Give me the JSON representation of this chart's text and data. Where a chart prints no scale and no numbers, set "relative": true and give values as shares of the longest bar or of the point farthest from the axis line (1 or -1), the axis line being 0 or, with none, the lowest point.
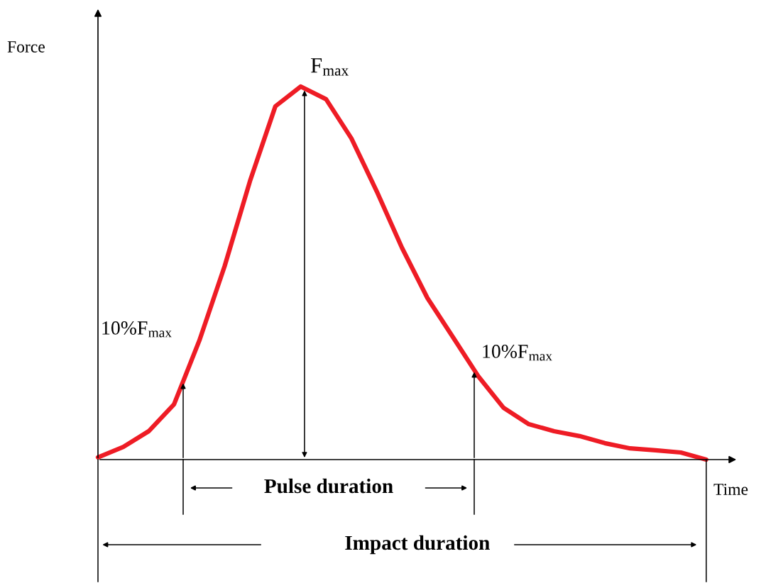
{
  "chart_data": {
    "type": "line",
    "relative": true,
    "xlabel": "Time",
    "ylabel": "Force",
    "marker": "none",
    "line_style": "solid",
    "categories": [
      null,
      null,
      null,
      null,
      null,
      null,
      null,
      null,
      null,
      null,
      null,
      null,
      null,
      null,
      null,
      null,
      null,
      null,
      null,
      null,
      null,
      null,
      null,
      null,
      null
    ],
    "series": [
      {
        "color": "#ee1c25",
        "values": [
          0.006,
          0.034,
          0.076,
          0.148,
          0.319,
          0.519,
          0.747,
          0.947,
          1,
          0.966,
          0.861,
          0.719,
          0.567,
          0.433,
          0.329,
          0.224,
          0.139,
          0.095,
          0.076,
          0.063,
          0.044,
          0.03,
          0.025,
          0.019,
          0
        ]
      }
    ],
    "annotations": [
      "F$_{max}$",
      "10%F$_{max}$",
      "10%F$_{max}$",
      "Pulse duration",
      "Impact duration"
    ]
  }
}
